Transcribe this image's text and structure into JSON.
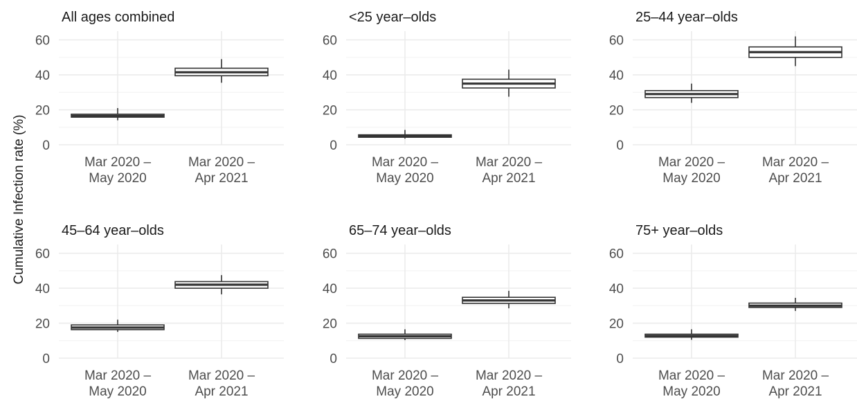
{
  "chart_data": {
    "type": "box",
    "ylabel": "Cumulative Infection rate (%)",
    "ylim": [
      0,
      65
    ],
    "yticks": [
      0,
      20,
      40,
      60
    ],
    "grid": true,
    "categories": [
      "Mar 2020 – May 2020",
      "Mar 2020 – Apr 2021"
    ],
    "category_lines": [
      [
        "Mar 2020 –",
        "May 2020"
      ],
      [
        "Mar 2020 –",
        "Apr 2021"
      ]
    ],
    "panels": [
      {
        "title": "All ages combined",
        "boxes": [
          {
            "whisker_low": 14,
            "q1": 15.8,
            "median": 16.5,
            "q3": 17.5,
            "whisker_high": 21
          },
          {
            "whisker_low": 35.5,
            "q1": 39.5,
            "median": 41.5,
            "q3": 43.8,
            "whisker_high": 49
          }
        ]
      },
      {
        "title": "<25 year–olds",
        "boxes": [
          {
            "whisker_low": 3.5,
            "q1": 4.3,
            "median": 5,
            "q3": 5.7,
            "whisker_high": 8.5
          },
          {
            "whisker_low": 27.5,
            "q1": 32.5,
            "median": 35,
            "q3": 37.5,
            "whisker_high": 43
          }
        ]
      },
      {
        "title": "25–44 year–olds",
        "boxes": [
          {
            "whisker_low": 24,
            "q1": 27,
            "median": 29,
            "q3": 31,
            "whisker_high": 35
          },
          {
            "whisker_low": 45,
            "q1": 50,
            "median": 53,
            "q3": 56,
            "whisker_high": 62
          }
        ]
      },
      {
        "title": "45–64 year–olds",
        "boxes": [
          {
            "whisker_low": 15,
            "q1": 16.3,
            "median": 17.5,
            "q3": 19,
            "whisker_high": 22
          },
          {
            "whisker_low": 36.5,
            "q1": 40,
            "median": 42,
            "q3": 43.8,
            "whisker_high": 47.5
          }
        ]
      },
      {
        "title": "65–74 year–olds",
        "boxes": [
          {
            "whisker_low": 10.3,
            "q1": 11.3,
            "median": 12.5,
            "q3": 13.7,
            "whisker_high": 16.5
          },
          {
            "whisker_low": 28.5,
            "q1": 31.3,
            "median": 33,
            "q3": 34.8,
            "whisker_high": 38.5
          }
        ]
      },
      {
        "title": "75+ year–olds",
        "boxes": [
          {
            "whisker_low": 10.5,
            "q1": 12,
            "median": 12.7,
            "q3": 13.7,
            "whisker_high": 16.5
          },
          {
            "whisker_low": 27,
            "q1": 29,
            "median": 30,
            "q3": 31.5,
            "whisker_high": 34.5
          }
        ]
      }
    ]
  }
}
